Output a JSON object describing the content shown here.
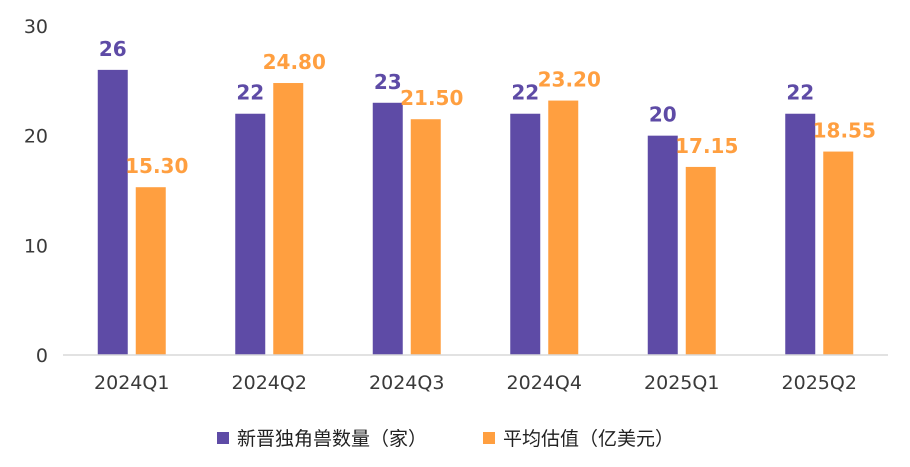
{
  "chart_data": {
    "type": "bar",
    "title": "",
    "xlabel": "",
    "ylabel": "",
    "categories": [
      "2024Q1",
      "2024Q2",
      "2024Q3",
      "2024Q4",
      "2025Q1",
      "2025Q2"
    ],
    "ylim": [
      0,
      30
    ],
    "yticks": [
      0,
      10,
      20,
      30
    ],
    "grid": false,
    "legend_position": "bottom",
    "series": [
      {
        "name": "新晋独角兽数量（家）",
        "color": "#5e4ba6",
        "values": [
          26,
          22,
          23,
          22,
          20,
          22
        ],
        "labels": [
          "26",
          "22",
          "23",
          "22",
          "20",
          "22"
        ]
      },
      {
        "name": "平均估值（亿美元）",
        "color": "#ff9f40",
        "values": [
          15.3,
          24.8,
          21.5,
          23.2,
          17.15,
          18.55
        ],
        "labels": [
          "15.30",
          "24.80",
          "21.50",
          "23.20",
          "17.15",
          "18.55"
        ]
      }
    ]
  }
}
